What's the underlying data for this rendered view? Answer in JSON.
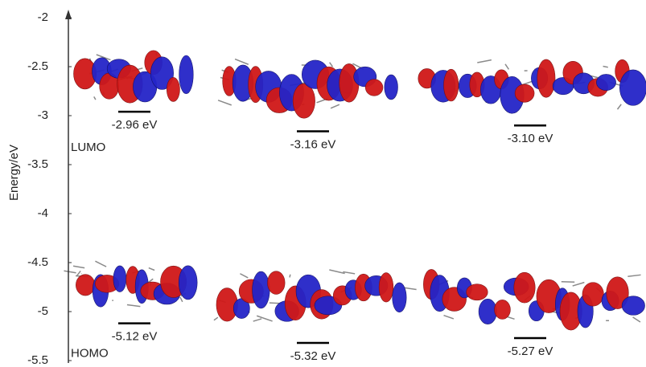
{
  "chart_data": {
    "type": "energy-level",
    "ylabel": "Energy/eV",
    "ylim": [
      -5.5,
      -2
    ],
    "yticks": [
      -5.5,
      -5,
      -4.5,
      -4,
      -3.5,
      -3,
      -2.5,
      -2
    ],
    "series": [
      {
        "name": "LUMO",
        "color": "#000000",
        "values": [
          -2.96,
          -3.16,
          -3.1
        ],
        "value_labels": [
          "-2.96 eV",
          "-3.16 eV",
          "-3.10 eV"
        ]
      },
      {
        "name": "HOMO",
        "color": "#000000",
        "values": [
          -5.12,
          -5.32,
          -5.27
        ],
        "value_labels": [
          "-5.12 eV",
          "-5.32 eV",
          "-5.27 eV"
        ]
      }
    ]
  }
}
